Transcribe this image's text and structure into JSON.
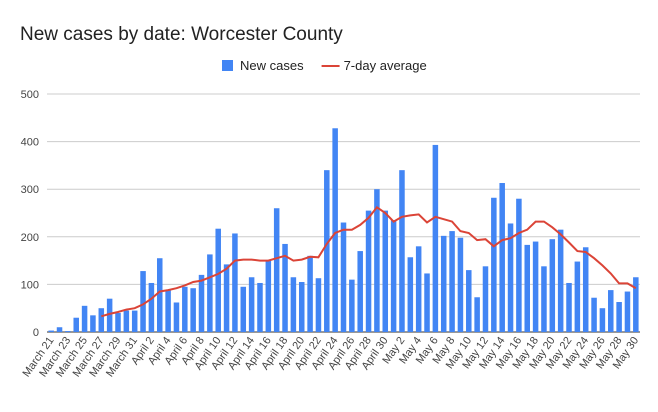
{
  "chart_data": {
    "type": "bar_line",
    "title": "New cases by date: Worcester County",
    "categories": [
      "March 21",
      null,
      "March 23",
      null,
      "March 25",
      null,
      "March 27",
      null,
      "March 29",
      null,
      "March 31",
      null,
      "April 2",
      null,
      "April 4",
      null,
      "April 6",
      null,
      "April 8",
      null,
      "April 10",
      null,
      "April 12",
      null,
      "April 14",
      null,
      "April 16",
      null,
      "April 18",
      null,
      "April 20",
      null,
      "April 22",
      null,
      "April 24",
      null,
      "April 26",
      null,
      "April 28",
      null,
      "April 30",
      null,
      "May 2",
      null,
      "May 4",
      null,
      "May 6",
      null,
      "May 8",
      null,
      "May 10",
      null,
      "May 12",
      null,
      "May 14",
      null,
      "May 16",
      null,
      "May 18",
      null,
      "May 20",
      null,
      "May 22",
      null,
      "May 24",
      null,
      "May 26",
      null,
      "May 28",
      null,
      "May 30"
    ],
    "series": [
      {
        "name": "New cases",
        "type": "bar",
        "color": "#4285f4",
        "values": [
          3,
          10,
          2,
          30,
          55,
          35,
          50,
          70,
          40,
          45,
          45,
          128,
          103,
          155,
          88,
          62,
          95,
          92,
          120,
          163,
          217,
          142,
          207,
          95,
          115,
          103,
          150,
          260,
          185,
          115,
          105,
          160,
          113,
          340,
          428,
          230,
          110,
          170,
          255,
          300,
          255,
          235,
          340,
          157,
          180,
          123,
          393,
          202,
          212,
          198,
          130,
          73,
          138,
          282,
          313,
          228,
          280,
          183,
          190,
          138,
          195,
          215,
          103,
          148,
          178,
          72,
          50,
          88,
          63,
          85,
          115
        ]
      },
      {
        "name": "7-day average",
        "type": "line",
        "color": "#db4437",
        "values": [
          null,
          null,
          null,
          null,
          null,
          null,
          33,
          38,
          42,
          47,
          50,
          58,
          70,
          85,
          88,
          92,
          98,
          105,
          108,
          115,
          122,
          133,
          150,
          152,
          152,
          150,
          150,
          155,
          160,
          150,
          152,
          158,
          157,
          185,
          208,
          215,
          215,
          225,
          240,
          262,
          250,
          232,
          242,
          245,
          247,
          230,
          242,
          237,
          232,
          212,
          208,
          193,
          195,
          180,
          193,
          197,
          208,
          215,
          232,
          232,
          220,
          205,
          188,
          170,
          168,
          155,
          140,
          123,
          102,
          102,
          92
        ]
      }
    ],
    "ylim": [
      0,
      500
    ],
    "yticks": [
      0,
      100,
      200,
      300,
      400,
      500
    ],
    "grid": true,
    "legend": "top"
  }
}
